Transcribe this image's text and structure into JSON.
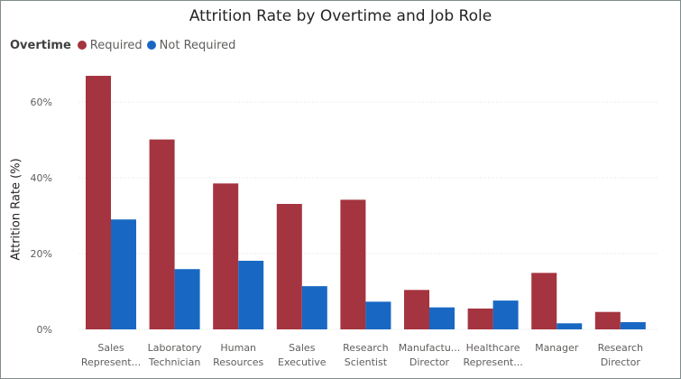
{
  "chart_data": {
    "type": "bar",
    "title": "Attrition Rate by Overtime and Job Role",
    "ylabel": "Attrition Rate (%)",
    "xlabel": "",
    "legend": {
      "title": "Overtime",
      "position": "top-left"
    },
    "categories": [
      [
        "Sales",
        "Represent..."
      ],
      [
        "Laboratory",
        "Technician"
      ],
      [
        "Human",
        "Resources"
      ],
      [
        "Sales",
        "Executive"
      ],
      [
        "Research",
        "Scientist"
      ],
      [
        "Manufactu...",
        "Director"
      ],
      [
        "Healthcare",
        "Represent..."
      ],
      [
        "Manager"
      ],
      [
        "Research",
        "Director"
      ]
    ],
    "series": [
      {
        "name": "Required",
        "color": "#a4343f",
        "values": [
          66.9,
          50.1,
          38.5,
          33.1,
          34.2,
          10.4,
          5.5,
          14.9,
          4.6
        ]
      },
      {
        "name": "Not Required",
        "color": "#1868c3",
        "values": [
          29.0,
          15.9,
          18.1,
          11.4,
          7.3,
          5.8,
          7.6,
          1.6,
          1.9
        ]
      }
    ],
    "ylim": [
      0,
      70
    ],
    "yticks": [
      0,
      20,
      40,
      60
    ],
    "ytick_labels": [
      "0%",
      "20%",
      "40%",
      "60%"
    ],
    "grid": true
  }
}
